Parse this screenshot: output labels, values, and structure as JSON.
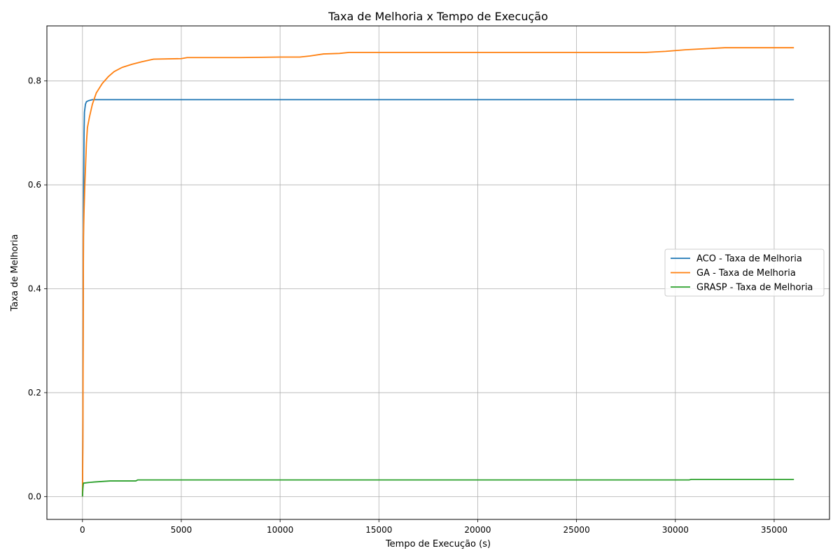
{
  "chart_data": {
    "type": "line",
    "title": "Taxa de Melhoria x Tempo de Execução",
    "xlabel": "Tempo de Execução (s)",
    "ylabel": "Taxa de Melhoria",
    "xlim": [
      -1800,
      37800
    ],
    "ylim": [
      -0.044,
      0.906
    ],
    "xticks": [
      0,
      5000,
      10000,
      15000,
      20000,
      25000,
      30000,
      35000
    ],
    "xtick_labels": [
      "0",
      "5000",
      "10000",
      "15000",
      "20000",
      "25000",
      "30000",
      "35000"
    ],
    "yticks": [
      0.0,
      0.2,
      0.4,
      0.6,
      0.8
    ],
    "ytick_labels": [
      "0.0",
      "0.2",
      "0.4",
      "0.6",
      "0.8"
    ],
    "grid": true,
    "legend_position": "center-right",
    "series": [
      {
        "name": "ACO - Taxa de Melhoria",
        "color": "#1f77b4",
        "x": [
          0,
          20,
          40,
          60,
          80,
          100,
          150,
          200,
          300,
          500,
          1000,
          5000,
          10000,
          20000,
          30000,
          36000
        ],
        "y": [
          0.0,
          0.15,
          0.4,
          0.6,
          0.7,
          0.74,
          0.755,
          0.76,
          0.762,
          0.764,
          0.764,
          0.764,
          0.764,
          0.764,
          0.764,
          0.764
        ]
      },
      {
        "name": "GA - Taxa de Melhoria",
        "color": "#ff7f0e",
        "x": [
          0,
          20,
          50,
          80,
          120,
          200,
          250,
          350,
          500,
          700,
          1000,
          1300,
          1600,
          2000,
          2500,
          3000,
          3600,
          5000,
          5300,
          8000,
          10000,
          11000,
          11500,
          12200,
          13000,
          13500,
          14500,
          15000,
          20000,
          25000,
          28500,
          29500,
          30500,
          31500,
          32500,
          36000
        ],
        "y": [
          0.0,
          0.1,
          0.5,
          0.55,
          0.6,
          0.68,
          0.71,
          0.73,
          0.755,
          0.777,
          0.795,
          0.808,
          0.818,
          0.826,
          0.832,
          0.837,
          0.842,
          0.843,
          0.845,
          0.845,
          0.846,
          0.846,
          0.848,
          0.852,
          0.853,
          0.855,
          0.855,
          0.855,
          0.855,
          0.855,
          0.855,
          0.857,
          0.86,
          0.862,
          0.864,
          0.864
        ]
      },
      {
        "name": "GRASP - Taxa de Melhoria",
        "color": "#2ca02c",
        "x": [
          0,
          20,
          40,
          60,
          100,
          300,
          600,
          1000,
          1400,
          2700,
          2800,
          10000,
          16200,
          20000,
          30700,
          30800,
          36000
        ],
        "y": [
          0.0,
          0.015,
          0.024,
          0.026,
          0.026,
          0.027,
          0.028,
          0.029,
          0.03,
          0.03,
          0.032,
          0.032,
          0.032,
          0.032,
          0.032,
          0.033,
          0.033
        ]
      }
    ]
  }
}
